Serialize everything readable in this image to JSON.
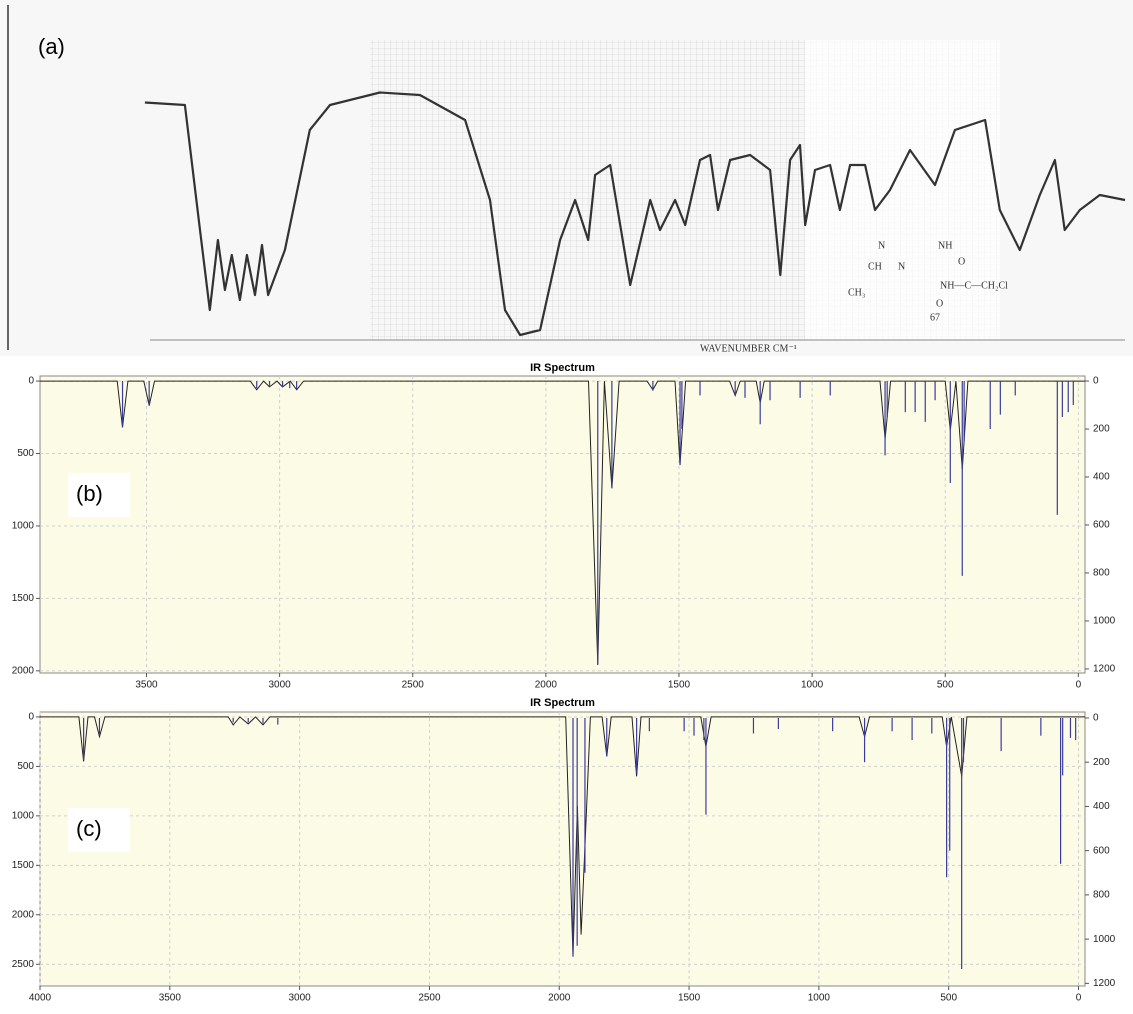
{
  "chart_data": [
    {
      "type": "line",
      "label": "(a)",
      "xlim": [
        4000,
        600
      ],
      "ylim": [
        0,
        100
      ],
      "color": "#333333",
      "series": [
        {
          "color": "#333333",
          "x": [
            3983,
            3845,
            3793,
            3759,
            3731,
            3707,
            3683,
            3655,
            3631,
            3603,
            3579,
            3558,
            3500,
            3414,
            3344,
            3172,
            3034,
            2878,
            2792,
            2740,
            2688,
            2619,
            2550,
            2498,
            2453,
            2429,
            2377,
            2308,
            2239,
            2205,
            2153,
            2118,
            2067,
            2032,
            2005,
            1963,
            1894,
            1825,
            1790,
            1756,
            1722,
            1704,
            1670,
            1618,
            1584,
            1549,
            1497,
            1463,
            1411,
            1342,
            1256,
            1187,
            1083,
            1032,
            963,
            894,
            842,
            808,
            756,
            687,
            600
          ],
          "values": [
            95,
            94,
            44,
            12,
            40,
            20,
            34,
            16,
            34,
            18,
            38,
            18,
            36,
            84,
            94,
            99,
            98,
            88,
            56,
            12,
            2,
            4,
            40,
            56,
            40,
            66,
            70,
            22,
            56,
            44,
            56,
            46,
            72,
            74,
            52,
            72,
            74,
            68,
            26,
            72,
            78,
            46,
            68,
            70,
            52,
            70,
            70,
            52,
            60,
            76,
            62,
            84,
            88,
            52,
            36,
            58,
            72,
            44,
            52,
            58,
            56
          ]
        }
      ],
      "annotations": [
        "N",
        "NH",
        "CH",
        "N",
        "O",
        "CH₃",
        "NH—C—CH₂Cl",
        "O",
        "67",
        "WAVENUMBER CM⁻¹"
      ]
    },
    {
      "type": "spectrum",
      "title": "IR Spectrum",
      "label": "(b)",
      "xlim": [
        3900,
        -25
      ],
      "ylim": [
        -35,
        2015
      ],
      "y2lim": [
        -21,
        1217
      ],
      "y_inverted": true,
      "grid": true,
      "xticks": [
        3500,
        3000,
        2500,
        2000,
        1500,
        1000,
        500,
        0
      ],
      "yticks": [
        0,
        500,
        1000,
        1500,
        2000
      ],
      "y2ticks": [
        0,
        200,
        400,
        600,
        800,
        1000,
        1200
      ],
      "series": [
        {
          "color": "#222222",
          "x": [
            3900,
            3610,
            3590,
            3570,
            3510,
            3490,
            3470,
            3110,
            3086,
            3060,
            3038,
            3010,
            2989,
            2960,
            2936,
            2910,
            1840,
            1805,
            1780,
            1752,
            1725,
            1620,
            1598,
            1580,
            1515,
            1496,
            1475,
            1310,
            1289,
            1270,
            1210,
            1195,
            1180,
            745,
            726,
            705,
            500,
            481,
            460,
            436,
            415,
            -25
          ],
          "values": [
            0,
            0,
            320,
            0,
            0,
            170,
            0,
            0,
            60,
            0,
            40,
            0,
            40,
            0,
            60,
            0,
            0,
            1960,
            0,
            740,
            0,
            0,
            60,
            0,
            0,
            580,
            0,
            0,
            100,
            0,
            0,
            150,
            0,
            0,
            400,
            0,
            0,
            340,
            0,
            610,
            0,
            0
          ]
        },
        {
          "color": "#3b3b9c",
          "axis": "y2",
          "x": [
            3590,
            3490,
            3086,
            3038,
            2989,
            2962,
            2936,
            1805,
            1752,
            1598,
            1496,
            1489,
            1421,
            1289,
            1252,
            1195,
            1158,
            1045,
            932,
            726,
            718,
            650,
            613,
            575,
            538,
            481,
            436,
            429,
            331,
            293,
            237,
            79,
            60,
            38,
            19
          ],
          "values": [
            190,
            100,
            30,
            20,
            25,
            30,
            35,
            1180,
            440,
            40,
            350,
            200,
            60,
            60,
            70,
            180,
            80,
            70,
            60,
            310,
            150,
            130,
            130,
            170,
            80,
            425,
            812,
            250,
            200,
            140,
            60,
            558,
            150,
            130,
            100
          ]
        }
      ]
    },
    {
      "type": "spectrum",
      "title": "IR Spectrum",
      "label": "(c)",
      "xlim": [
        4000,
        -25
      ],
      "ylim": [
        -50,
        2720
      ],
      "y2lim": [
        -27,
        1212
      ],
      "y_inverted": true,
      "grid": true,
      "xticks": [
        4000,
        3500,
        3000,
        2500,
        2000,
        1500,
        1000,
        500,
        0
      ],
      "yticks": [
        0,
        500,
        1000,
        1500,
        2000,
        2500
      ],
      "y2ticks": [
        0,
        200,
        400,
        600,
        800,
        1000,
        1200
      ],
      "series": [
        {
          "color": "#222222",
          "x": [
            4000,
            3850,
            3832,
            3815,
            3790,
            3771,
            3750,
            3275,
            3256,
            3230,
            3198,
            3170,
            3141,
            3115,
            1975,
            1947,
            1930,
            1916,
            1901,
            1880,
            1835,
            1817,
            1800,
            1720,
            1702,
            1685,
            1455,
            1435,
            1415,
            845,
            824,
            805,
            525,
            508,
            490,
            450,
            430,
            -25
          ],
          "values": [
            0,
            0,
            450,
            0,
            0,
            200,
            0,
            0,
            80,
            0,
            70,
            0,
            80,
            0,
            0,
            2420,
            900,
            2200,
            1300,
            0,
            0,
            400,
            0,
            0,
            600,
            0,
            0,
            300,
            0,
            0,
            200,
            0,
            0,
            300,
            0,
            600,
            0,
            0
          ]
        },
        {
          "color": "#3b3b9c",
          "axis": "y2",
          "x": [
            3832,
            3771,
            3256,
            3198,
            3141,
            3084,
            1947,
            1931,
            1901,
            1817,
            1702,
            1653,
            1519,
            1481,
            1443,
            1435,
            1252,
            1156,
            947,
            824,
            718,
            641,
            565,
            508,
            496,
            450,
            443,
            298,
            145,
            69,
            61,
            31,
            11
          ],
          "values": [
            190,
            80,
            20,
            20,
            25,
            30,
            1080,
            1030,
            700,
            170,
            250,
            60,
            60,
            80,
            100,
            437,
            70,
            50,
            60,
            200,
            60,
            100,
            70,
            720,
            600,
            1135,
            200,
            150,
            80,
            660,
            260,
            90,
            100
          ]
        }
      ]
    }
  ]
}
